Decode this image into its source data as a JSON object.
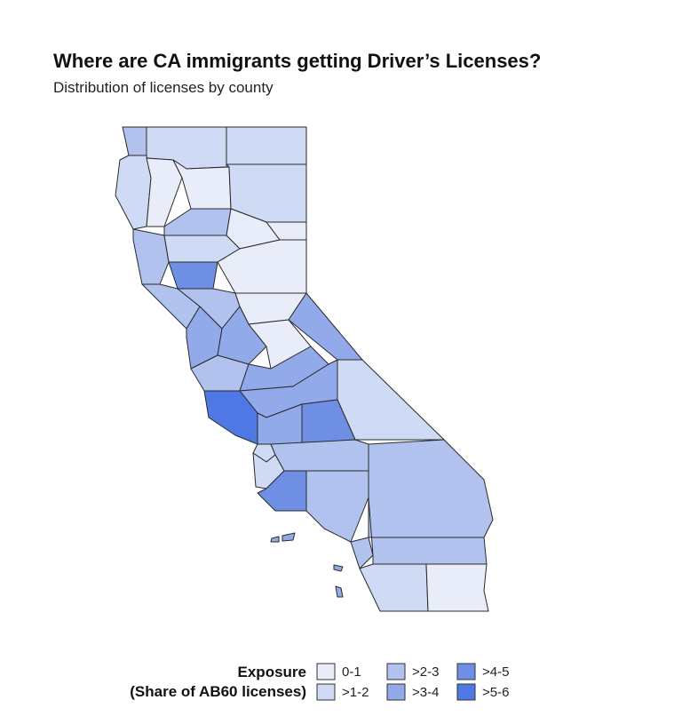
{
  "title": "Where are CA immigrants getting Driver’s Licenses?",
  "subtitle": "Distribution of licenses by county",
  "legend": {
    "title": [
      "Exposure",
      "(Share of AB60 licenses)"
    ],
    "items": [
      {
        "label": "0-1",
        "color": "#e9edf9"
      },
      {
        "label": ">1-2",
        "color": "#cfdaf4"
      },
      {
        "label": ">2-3",
        "color": "#b1c2ef"
      },
      {
        "label": ">3-4",
        "color": "#93aaea"
      },
      {
        "label": ">4-5",
        "color": "#6f8fe4"
      },
      {
        "label": ">5-6",
        "color": "#4f78e4"
      }
    ]
  }
}
